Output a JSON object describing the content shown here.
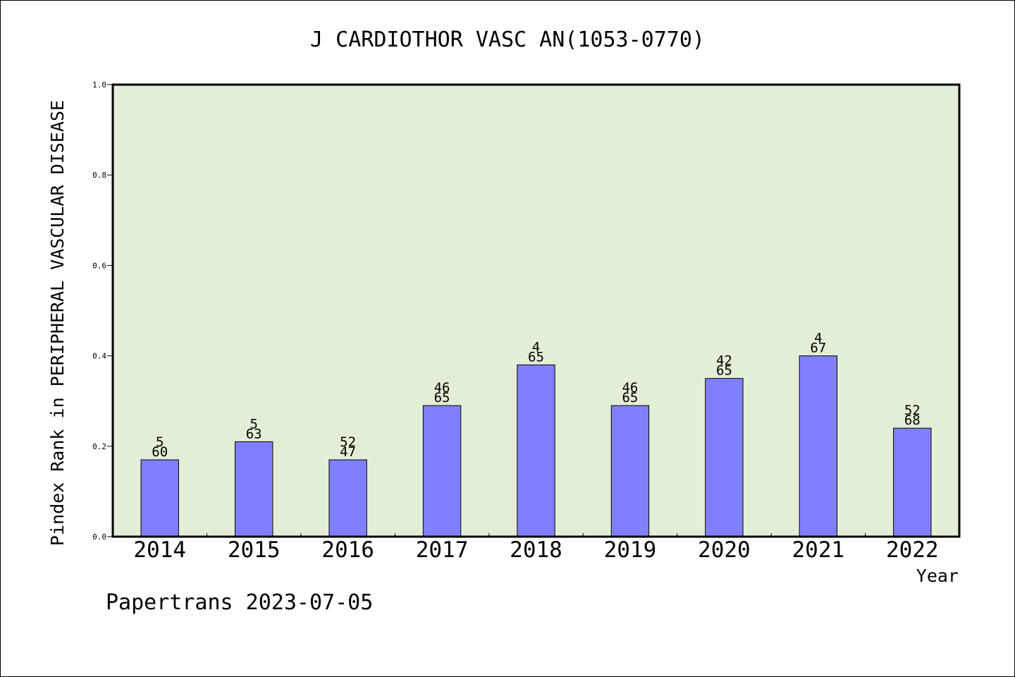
{
  "chart_data": {
    "type": "bar",
    "title": "J CARDIOTHOR VASC AN(1053-0770)",
    "xlabel": "Year",
    "ylabel": "Pindex Rank in PERIPHERAL VASCULAR DISEASE",
    "categories": [
      "2014",
      "2015",
      "2016",
      "2017",
      "2018",
      "2019",
      "2020",
      "2021",
      "2022"
    ],
    "values": [
      0.17,
      0.21,
      0.17,
      0.29,
      0.38,
      0.29,
      0.35,
      0.4,
      0.24
    ],
    "bar_labels_top": [
      "5",
      "5",
      "52",
      "46",
      "4",
      "46",
      "42",
      "4",
      "52"
    ],
    "bar_labels_bottom": [
      "60",
      "63",
      "47",
      "65",
      "65",
      "65",
      "65",
      "67",
      "68"
    ],
    "ylim": [
      0,
      1.0
    ],
    "yticks": [
      "0.0",
      "0.2",
      "0.4",
      "0.6",
      "0.8",
      "1.0"
    ],
    "grid": false,
    "colors": {
      "plot_background": "#e2efd6",
      "bar_fill": "#8080ff",
      "bar_stroke": "#000000"
    }
  },
  "footer": {
    "text": "Papertrans 2023-07-05"
  }
}
